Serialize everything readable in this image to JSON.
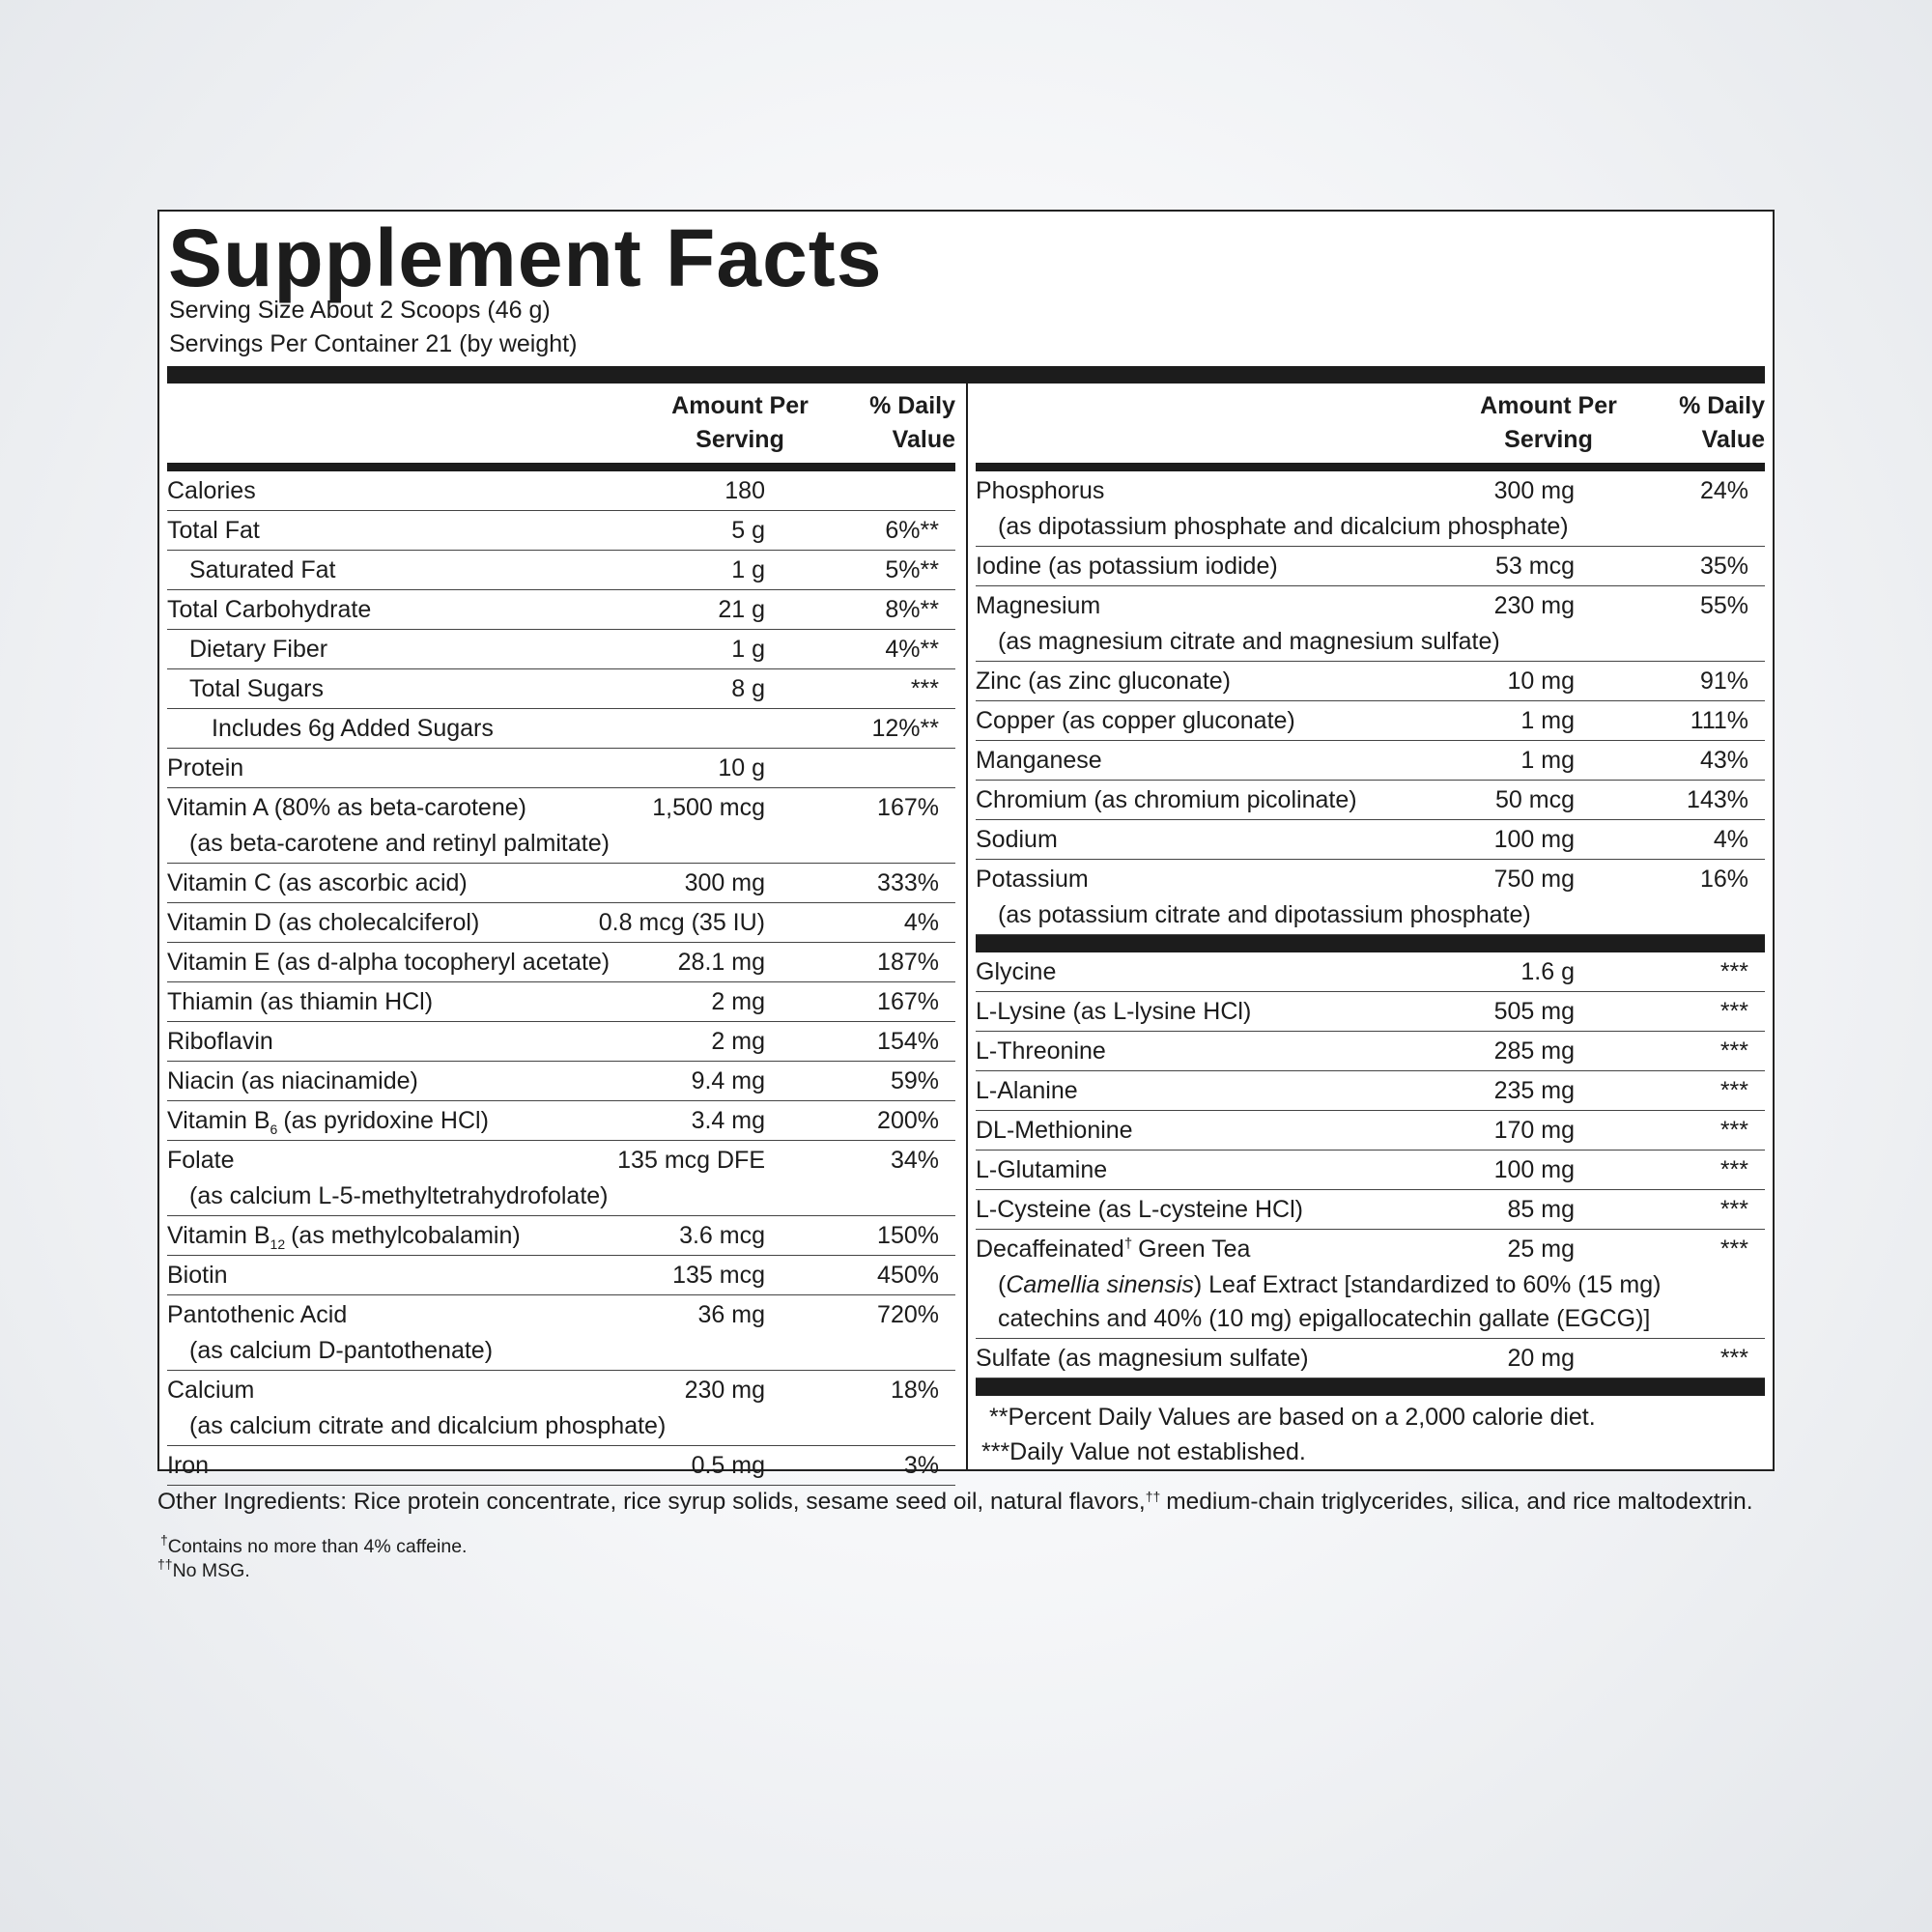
{
  "title": "Supplement Facts",
  "serving_size": "Serving Size About 2 Scoops (46 g)",
  "servings_per_container": "Servings Per Container 21 (by weight)",
  "columns": {
    "amount": [
      "Amount Per",
      "Serving"
    ],
    "daily_value": [
      "% Daily",
      "Value"
    ]
  },
  "left_rows": [
    {
      "name": "Calories",
      "amount": "180"
    },
    {
      "name": "Total Fat",
      "amount": "5 g",
      "dv": "6%**",
      "sub_rows": [
        {
          "name": "Saturated Fat",
          "amount": "1 g",
          "dv": "5%**"
        }
      ]
    },
    {
      "name": "Total Carbohydrate",
      "amount": "21 g",
      "dv": "8%**",
      "sub_rows": [
        {
          "name": "Dietary Fiber",
          "amount": "1 g",
          "dv": "4%**"
        },
        {
          "name": "Total Sugars",
          "amount": "8 g",
          "dv": "***",
          "sub_rows": [
            {
              "name": "Includes 6g Added Sugars",
              "dv": "12%**"
            }
          ]
        }
      ]
    },
    {
      "name": "Protein",
      "amount": "10 g"
    },
    {
      "name": "Vitamin A (80% as beta-carotene)",
      "amount": "1,500 mcg",
      "dv": "167%",
      "detail": "(as beta-carotene and retinyl palmitate)"
    },
    {
      "name": "Vitamin C (as ascorbic acid)",
      "amount": "300 mg",
      "dv": "333%"
    },
    {
      "name": "Vitamin D (as cholecalciferol)",
      "amount": "0.8 mcg (35 IU)",
      "dv": "4%"
    },
    {
      "name": "Vitamin E (as d-alpha tocopheryl acetate)",
      "amount": "28.1 mg",
      "dv": "187%"
    },
    {
      "name": "Thiamin (as thiamin HCl)",
      "amount": "2 mg",
      "dv": "167%"
    },
    {
      "name": "Riboflavin",
      "amount": "2 mg",
      "dv": "154%"
    },
    {
      "name": "Niacin (as niacinamide)",
      "amount": "9.4 mg",
      "dv": "59%"
    },
    {
      "name": "Vitamin B",
      "name_sub": "6",
      "name_after": "(as pyridoxine HCl)",
      "amount": "3.4 mg",
      "dv": "200%"
    },
    {
      "name": "Folate",
      "amount": "135 mcg DFE",
      "dv": "34%",
      "detail": "(as calcium L-5-methyltetrahydrofolate)"
    },
    {
      "name": "Vitamin B",
      "name_sub": "12",
      "name_after": "(as methylcobalamin)",
      "amount": "3.6 mcg",
      "dv": "150%"
    },
    {
      "name": "Biotin",
      "amount": "135 mcg",
      "dv": "450%"
    },
    {
      "name": "Pantothenic Acid",
      "amount": "36 mg",
      "dv": "720%",
      "detail": "(as calcium D-pantothenate)"
    },
    {
      "name": "Calcium",
      "amount": "230 mg",
      "dv": "18%",
      "detail": "(as calcium citrate and dicalcium phosphate)"
    },
    {
      "name": "Iron",
      "amount": "0.5 mg",
      "dv": "3%"
    }
  ],
  "right_minerals": [
    {
      "name": "Phosphorus",
      "amount": "300 mg",
      "dv": "24%",
      "detail": "(as dipotassium phosphate and dicalcium phosphate)"
    },
    {
      "name": "Iodine (as potassium iodide)",
      "amount": "53 mcg",
      "dv": "35%"
    },
    {
      "name": "Magnesium",
      "amount": "230 mg",
      "dv": "55%",
      "detail": "(as magnesium citrate and magnesium sulfate)"
    },
    {
      "name": "Zinc (as zinc gluconate)",
      "amount": "10 mg",
      "dv": "91%"
    },
    {
      "name": "Copper (as copper gluconate)",
      "amount": "1 mg",
      "dv": "111%"
    },
    {
      "name": "Manganese",
      "amount": "1 mg",
      "dv": "43%"
    },
    {
      "name": "Chromium (as chromium picolinate)",
      "amount": "50 mcg",
      "dv": "143%"
    },
    {
      "name": "Sodium",
      "amount": "100 mg",
      "dv": "4%"
    },
    {
      "name": "Potassium",
      "amount": "750 mg",
      "dv": "16%",
      "detail": "(as potassium citrate and dipotassium phosphate)"
    }
  ],
  "right_others": [
    {
      "name": "Glycine",
      "amount": "1.6 g",
      "dv": "***"
    },
    {
      "name": "L-Lysine (as L-lysine HCl)",
      "amount": "505 mg",
      "dv": "***"
    },
    {
      "name": "L-Threonine",
      "amount": "285 mg",
      "dv": "***"
    },
    {
      "name": "L-Alanine",
      "amount": "235 mg",
      "dv": "***"
    },
    {
      "name": "DL-Methionine",
      "amount": "170 mg",
      "dv": "***"
    },
    {
      "name": "L-Glutamine",
      "amount": "100 mg",
      "dv": "***"
    },
    {
      "name": "L-Cysteine (as L-cysteine HCl)",
      "amount": "85 mg",
      "dv": "***"
    },
    {
      "name": "Decaffeinated",
      "name_sup": "†",
      "name_after": "Green Tea",
      "amount": "25 mg",
      "dv": "***",
      "detail": "(",
      "detail_italic": "Camellia sinensis",
      "detail_after": ") Leaf Extract [standardized to 60% (15 mg) catechins and 40% (10 mg) epigallocatechin gallate (EGCG)]"
    },
    {
      "name": "Sulfate (as magnesium sulfate)",
      "amount": "20 mg",
      "dv": "***"
    }
  ],
  "notes": [
    "**Percent Daily Values are based on a 2,000 calorie diet.",
    "***Daily Value not established."
  ],
  "other_ingredients": {
    "text": "Other Ingredients: Rice protein concentrate, rice syrup solids, sesame seed oil, natural flavors,",
    "sup": "††",
    "text_after": "medium-chain triglycerides, silica, and rice maltodextrin."
  },
  "dagger_notes": [
    {
      "sup": "†",
      "text": "Contains no more than 4% caffeine."
    },
    {
      "sup": "††",
      "text": "No MSG."
    }
  ]
}
